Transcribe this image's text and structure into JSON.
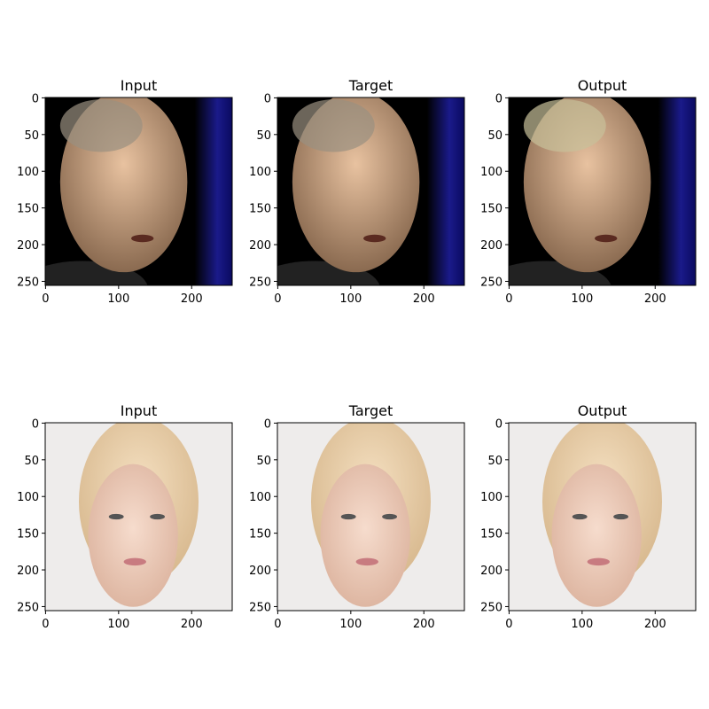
{
  "figure": {
    "panels": [
      {
        "title": "Input",
        "xlim": [
          -0.5,
          255.5
        ],
        "ylim": [
          255.5,
          -0.5
        ],
        "xticks": [
          0,
          100,
          200
        ],
        "yticks": [
          0,
          50,
          100,
          150,
          200,
          250
        ]
      },
      {
        "title": "Target",
        "xlim": [
          -0.5,
          255.5
        ],
        "ylim": [
          255.5,
          -0.5
        ],
        "xticks": [
          0,
          100,
          200
        ],
        "yticks": [
          0,
          50,
          100,
          150,
          200,
          250
        ]
      },
      {
        "title": "Output",
        "xlim": [
          -0.5,
          255.5
        ],
        "ylim": [
          255.5,
          -0.5
        ],
        "xticks": [
          0,
          100,
          200
        ],
        "yticks": [
          0,
          50,
          100,
          150,
          200,
          250
        ]
      },
      {
        "title": "Input",
        "xlim": [
          -0.5,
          255.5
        ],
        "ylim": [
          255.5,
          -0.5
        ],
        "xticks": [
          0,
          100,
          200
        ],
        "yticks": [
          0,
          50,
          100,
          150,
          200,
          250
        ]
      },
      {
        "title": "Target",
        "xlim": [
          -0.5,
          255.5
        ],
        "ylim": [
          255.5,
          -0.5
        ],
        "xticks": [
          0,
          100,
          200
        ],
        "yticks": [
          0,
          50,
          100,
          150,
          200,
          250
        ]
      },
      {
        "title": "Output",
        "xlim": [
          -0.5,
          255.5
        ],
        "ylim": [
          255.5,
          -0.5
        ],
        "xticks": [
          0,
          100,
          200
        ],
        "yticks": [
          0,
          50,
          100,
          150,
          200,
          250
        ]
      }
    ]
  }
}
